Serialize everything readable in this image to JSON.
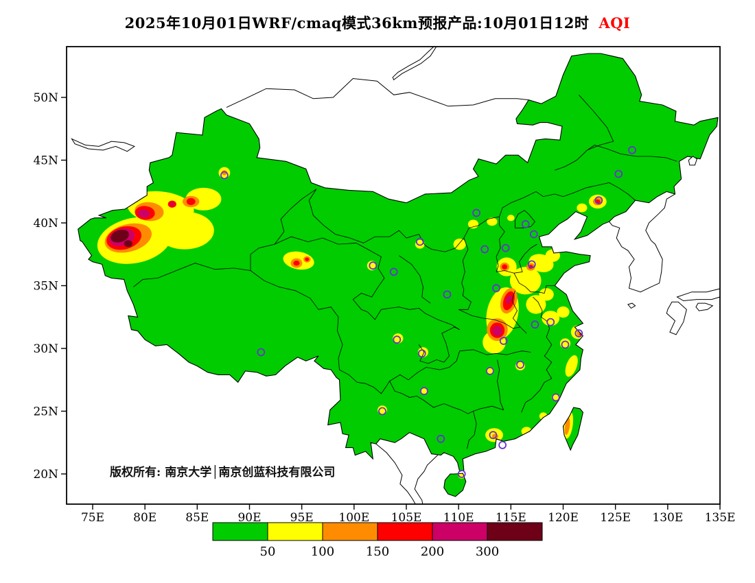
{
  "title": {
    "text": "2025年10月01日WRF/cmaq模式36km预报产品:10月01日12时",
    "variable": "AQI",
    "variable_color": "#ff0000"
  },
  "watermark": "版权所有: 南京大学│南京创蓝科技有限公司",
  "axes": {
    "lat_ticks": [
      "50N",
      "45N",
      "40N",
      "35N",
      "30N",
      "25N",
      "20N"
    ],
    "lon_ticks": [
      "75E",
      "80E",
      "85E",
      "90E",
      "95E",
      "100E",
      "105E",
      "110E",
      "115E",
      "120E",
      "125E",
      "130E",
      "135E"
    ]
  },
  "colorbar": {
    "segment_colors": [
      "#00cc00",
      "#ffff00",
      "#ff8c00",
      "#ff0000",
      "#cc0066",
      "#6e0018"
    ],
    "boundary_labels": [
      "50",
      "100",
      "150",
      "200",
      "300"
    ]
  },
  "chart_data": {
    "type": "heatmap",
    "title": "2025年10月01日WRF/cmaq模式36km预报产品:10月01日12时 AQI",
    "variable": "AQI",
    "xlabel": "",
    "ylabel": "",
    "lon_range": [
      75,
      135
    ],
    "lat_range": [
      20,
      50
    ],
    "tick_step_deg": 5,
    "grid": false,
    "legend_position": "bottom",
    "aqi_level_boundaries": [
      50,
      100,
      150,
      200,
      300
    ],
    "level_index_ranges": {
      "0": "0-50 (background)",
      "1": "50-100",
      "2": "100-150",
      "3": "150-200",
      "4": "200-300",
      "5": "300+"
    },
    "background_level": 0,
    "station_marker_color": "#6633cc",
    "hotspots_schema": "[lon_deg, lat_deg, rx_deg, ry_deg, rotation_deg, level_index]",
    "hotspots": [
      [
        79.0,
        38.6,
        3.6,
        1.8,
        -12,
        1
      ],
      [
        83.8,
        39.4,
        2.8,
        1.5,
        0,
        1
      ],
      [
        81.5,
        41.2,
        3.2,
        1.3,
        6,
        1
      ],
      [
        85.6,
        41.9,
        1.7,
        0.9,
        0,
        1
      ],
      [
        87.6,
        44.0,
        0.55,
        0.45,
        0,
        1
      ],
      [
        94.7,
        37.0,
        1.5,
        0.7,
        10,
        1
      ],
      [
        101.7,
        36.6,
        0.45,
        0.38,
        0,
        1
      ],
      [
        106.3,
        38.3,
        0.45,
        0.35,
        0,
        1
      ],
      [
        110.1,
        38.3,
        0.6,
        0.45,
        0,
        1
      ],
      [
        111.4,
        39.9,
        0.5,
        0.35,
        0,
        1
      ],
      [
        113.2,
        40.1,
        0.5,
        0.32,
        0,
        1
      ],
      [
        115.0,
        40.4,
        0.35,
        0.25,
        0,
        1
      ],
      [
        114.2,
        32.8,
        1.5,
        2.1,
        12,
        1
      ],
      [
        113.4,
        30.5,
        1.1,
        0.9,
        0,
        1
      ],
      [
        114.6,
        36.5,
        0.95,
        0.75,
        0,
        1
      ],
      [
        116.4,
        35.4,
        1.5,
        1.1,
        0,
        1
      ],
      [
        117.9,
        36.8,
        1.2,
        0.7,
        15,
        1
      ],
      [
        119.0,
        37.4,
        0.7,
        0.5,
        0,
        1
      ],
      [
        117.4,
        33.5,
        0.95,
        0.75,
        0,
        1
      ],
      [
        118.4,
        34.3,
        0.7,
        0.5,
        0,
        1
      ],
      [
        118.8,
        32.4,
        0.85,
        0.6,
        0,
        1
      ],
      [
        120.0,
        32.9,
        0.6,
        0.45,
        0,
        1
      ],
      [
        121.4,
        31.3,
        0.65,
        0.55,
        0,
        1
      ],
      [
        120.2,
        30.4,
        0.5,
        0.4,
        0,
        1
      ],
      [
        120.8,
        28.6,
        0.5,
        0.9,
        20,
        1
      ],
      [
        115.9,
        28.6,
        0.45,
        0.35,
        0,
        1
      ],
      [
        113.0,
        28.2,
        0.38,
        0.3,
        0,
        1
      ],
      [
        104.2,
        30.8,
        0.5,
        0.4,
        0,
        1
      ],
      [
        106.6,
        29.7,
        0.5,
        0.4,
        0,
        1
      ],
      [
        106.7,
        26.6,
        0.32,
        0.26,
        0,
        1
      ],
      [
        102.7,
        25.1,
        0.45,
        0.35,
        0,
        1
      ],
      [
        113.4,
        23.1,
        0.85,
        0.55,
        0,
        1
      ],
      [
        116.5,
        23.4,
        0.5,
        0.35,
        0,
        1
      ],
      [
        119.3,
        26.1,
        0.4,
        0.3,
        0,
        1
      ],
      [
        118.1,
        24.6,
        0.38,
        0.3,
        0,
        1
      ],
      [
        110.3,
        19.9,
        0.35,
        0.28,
        0,
        1
      ],
      [
        120.5,
        23.9,
        0.42,
        1.1,
        8,
        1
      ],
      [
        123.3,
        41.7,
        0.85,
        0.55,
        0,
        1
      ],
      [
        121.8,
        41.2,
        0.5,
        0.35,
        0,
        1
      ],
      [
        78.4,
        38.8,
        2.3,
        1.1,
        -15,
        2
      ],
      [
        80.4,
        40.9,
        1.4,
        0.75,
        5,
        2
      ],
      [
        84.4,
        41.7,
        0.8,
        0.45,
        0,
        2
      ],
      [
        87.6,
        44.0,
        0.26,
        0.2,
        0,
        2
      ],
      [
        94.5,
        36.8,
        0.55,
        0.38,
        0,
        2
      ],
      [
        95.5,
        37.1,
        0.35,
        0.25,
        0,
        2
      ],
      [
        114.8,
        33.8,
        0.75,
        1.05,
        18,
        2
      ],
      [
        113.7,
        31.5,
        1.0,
        0.9,
        0,
        2
      ],
      [
        114.4,
        36.5,
        0.45,
        0.35,
        0,
        2
      ],
      [
        116.9,
        36.5,
        0.42,
        0.3,
        0,
        2
      ],
      [
        121.6,
        31.2,
        0.3,
        0.25,
        0,
        2
      ],
      [
        123.3,
        41.7,
        0.45,
        0.3,
        0,
        2
      ],
      [
        120.4,
        23.8,
        0.22,
        0.7,
        8,
        2
      ],
      [
        113.5,
        23.0,
        0.3,
        0.2,
        0,
        2
      ],
      [
        78.0,
        38.8,
        1.7,
        0.9,
        -15,
        3
      ],
      [
        80.0,
        40.8,
        0.95,
        0.55,
        5,
        3
      ],
      [
        82.6,
        41.5,
        0.4,
        0.28,
        0,
        3
      ],
      [
        84.4,
        41.7,
        0.42,
        0.28,
        0,
        3
      ],
      [
        94.5,
        36.8,
        0.3,
        0.2,
        0,
        3
      ],
      [
        95.5,
        37.1,
        0.2,
        0.15,
        0,
        3
      ],
      [
        114.8,
        33.8,
        0.5,
        0.78,
        18,
        3
      ],
      [
        113.7,
        31.45,
        0.7,
        0.62,
        0,
        3
      ],
      [
        114.4,
        36.5,
        0.26,
        0.2,
        0,
        3
      ],
      [
        116.9,
        36.5,
        0.22,
        0.16,
        0,
        3
      ],
      [
        123.3,
        41.7,
        0.24,
        0.17,
        0,
        3
      ],
      [
        121.7,
        31.15,
        0.15,
        0.12,
        0,
        3
      ],
      [
        77.8,
        38.85,
        1.25,
        0.68,
        -16,
        4
      ],
      [
        79.9,
        40.75,
        0.55,
        0.33,
        5,
        4
      ],
      [
        82.6,
        41.5,
        0.2,
        0.14,
        0,
        4
      ],
      [
        113.7,
        31.4,
        0.45,
        0.4,
        0,
        4
      ],
      [
        114.8,
        33.9,
        0.24,
        0.34,
        18,
        4
      ],
      [
        77.6,
        38.95,
        0.9,
        0.48,
        -18,
        5
      ],
      [
        78.4,
        38.35,
        0.4,
        0.28,
        0,
        5
      ]
    ],
    "stations_schema": "[lon_deg, lat_deg]",
    "stations": [
      [
        87.6,
        43.8
      ],
      [
        126.6,
        45.8
      ],
      [
        125.3,
        43.9
      ],
      [
        123.4,
        41.8
      ],
      [
        116.4,
        39.9
      ],
      [
        117.2,
        39.1
      ],
      [
        114.5,
        38.0
      ],
      [
        112.5,
        37.9
      ],
      [
        111.7,
        40.8
      ],
      [
        117.0,
        36.7
      ],
      [
        113.6,
        34.8
      ],
      [
        108.9,
        34.3
      ],
      [
        103.8,
        36.1
      ],
      [
        101.8,
        36.6
      ],
      [
        106.3,
        38.5
      ],
      [
        104.1,
        30.7
      ],
      [
        106.5,
        29.6
      ],
      [
        114.3,
        30.6
      ],
      [
        117.3,
        31.9
      ],
      [
        118.8,
        32.1
      ],
      [
        121.5,
        31.2
      ],
      [
        120.2,
        30.3
      ],
      [
        115.9,
        28.7
      ],
      [
        113.0,
        28.2
      ],
      [
        106.7,
        26.6
      ],
      [
        102.7,
        25.0
      ],
      [
        91.1,
        29.7
      ],
      [
        108.3,
        22.8
      ],
      [
        113.3,
        23.1
      ],
      [
        114.2,
        22.3
      ],
      [
        119.3,
        26.1
      ],
      [
        110.3,
        20.0
      ]
    ]
  }
}
